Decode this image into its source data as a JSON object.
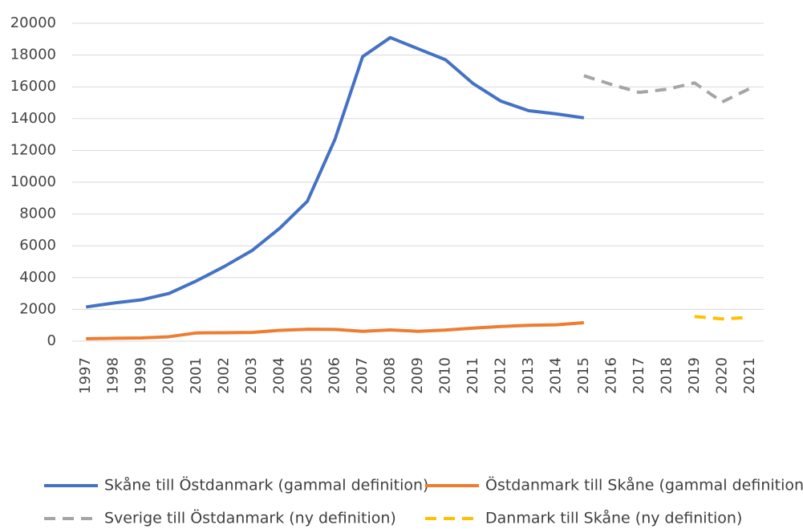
{
  "chart_data": {
    "type": "line",
    "categories": [
      "1997",
      "1998",
      "1999",
      "2000",
      "2001",
      "2002",
      "2003",
      "2004",
      "2005",
      "2006",
      "2007",
      "2008",
      "2009",
      "2010",
      "2011",
      "2012",
      "2013",
      "2014",
      "2015",
      "2016",
      "2017",
      "2018",
      "2019",
      "2020",
      "2021"
    ],
    "series": [
      {
        "name": "Skåne till Östdanmark (gammal definition)",
        "color": "#4472c4",
        "dashed": false,
        "values": [
          2150,
          2400,
          2600,
          3000,
          3800,
          4700,
          5700,
          7100,
          8800,
          12700,
          17900,
          19100,
          18400,
          17700,
          16200,
          15100,
          14500,
          14300,
          14050,
          null,
          null,
          null,
          null,
          null,
          null
        ]
      },
      {
        "name": "Östdanmark till Skåne (gammal definition)",
        "color": "#ed7d31",
        "dashed": false,
        "values": [
          150,
          180,
          200,
          280,
          520,
          530,
          550,
          680,
          750,
          740,
          620,
          710,
          620,
          700,
          820,
          920,
          1000,
          1030,
          1160,
          null,
          null,
          null,
          null,
          null,
          null
        ]
      },
      {
        "name": "Sverige till Östdanmark (ny definition)",
        "color": "#a5a5a5",
        "dashed": true,
        "values": [
          null,
          null,
          null,
          null,
          null,
          null,
          null,
          null,
          null,
          null,
          null,
          null,
          null,
          null,
          null,
          null,
          null,
          null,
          16700,
          16150,
          15650,
          15850,
          16250,
          15050,
          15900
        ]
      },
      {
        "name": "Danmark till Skåne (ny definition)",
        "color": "#ffc000",
        "dashed": true,
        "values": [
          null,
          null,
          null,
          null,
          null,
          null,
          null,
          null,
          null,
          null,
          null,
          null,
          null,
          null,
          null,
          null,
          null,
          null,
          null,
          null,
          null,
          null,
          1550,
          1400,
          1500
        ]
      }
    ],
    "ylim": [
      0,
      20000
    ],
    "yticks": [
      0,
      2000,
      4000,
      6000,
      8000,
      10000,
      12000,
      14000,
      16000,
      18000,
      20000
    ],
    "grid": true,
    "legend": "bottom"
  }
}
